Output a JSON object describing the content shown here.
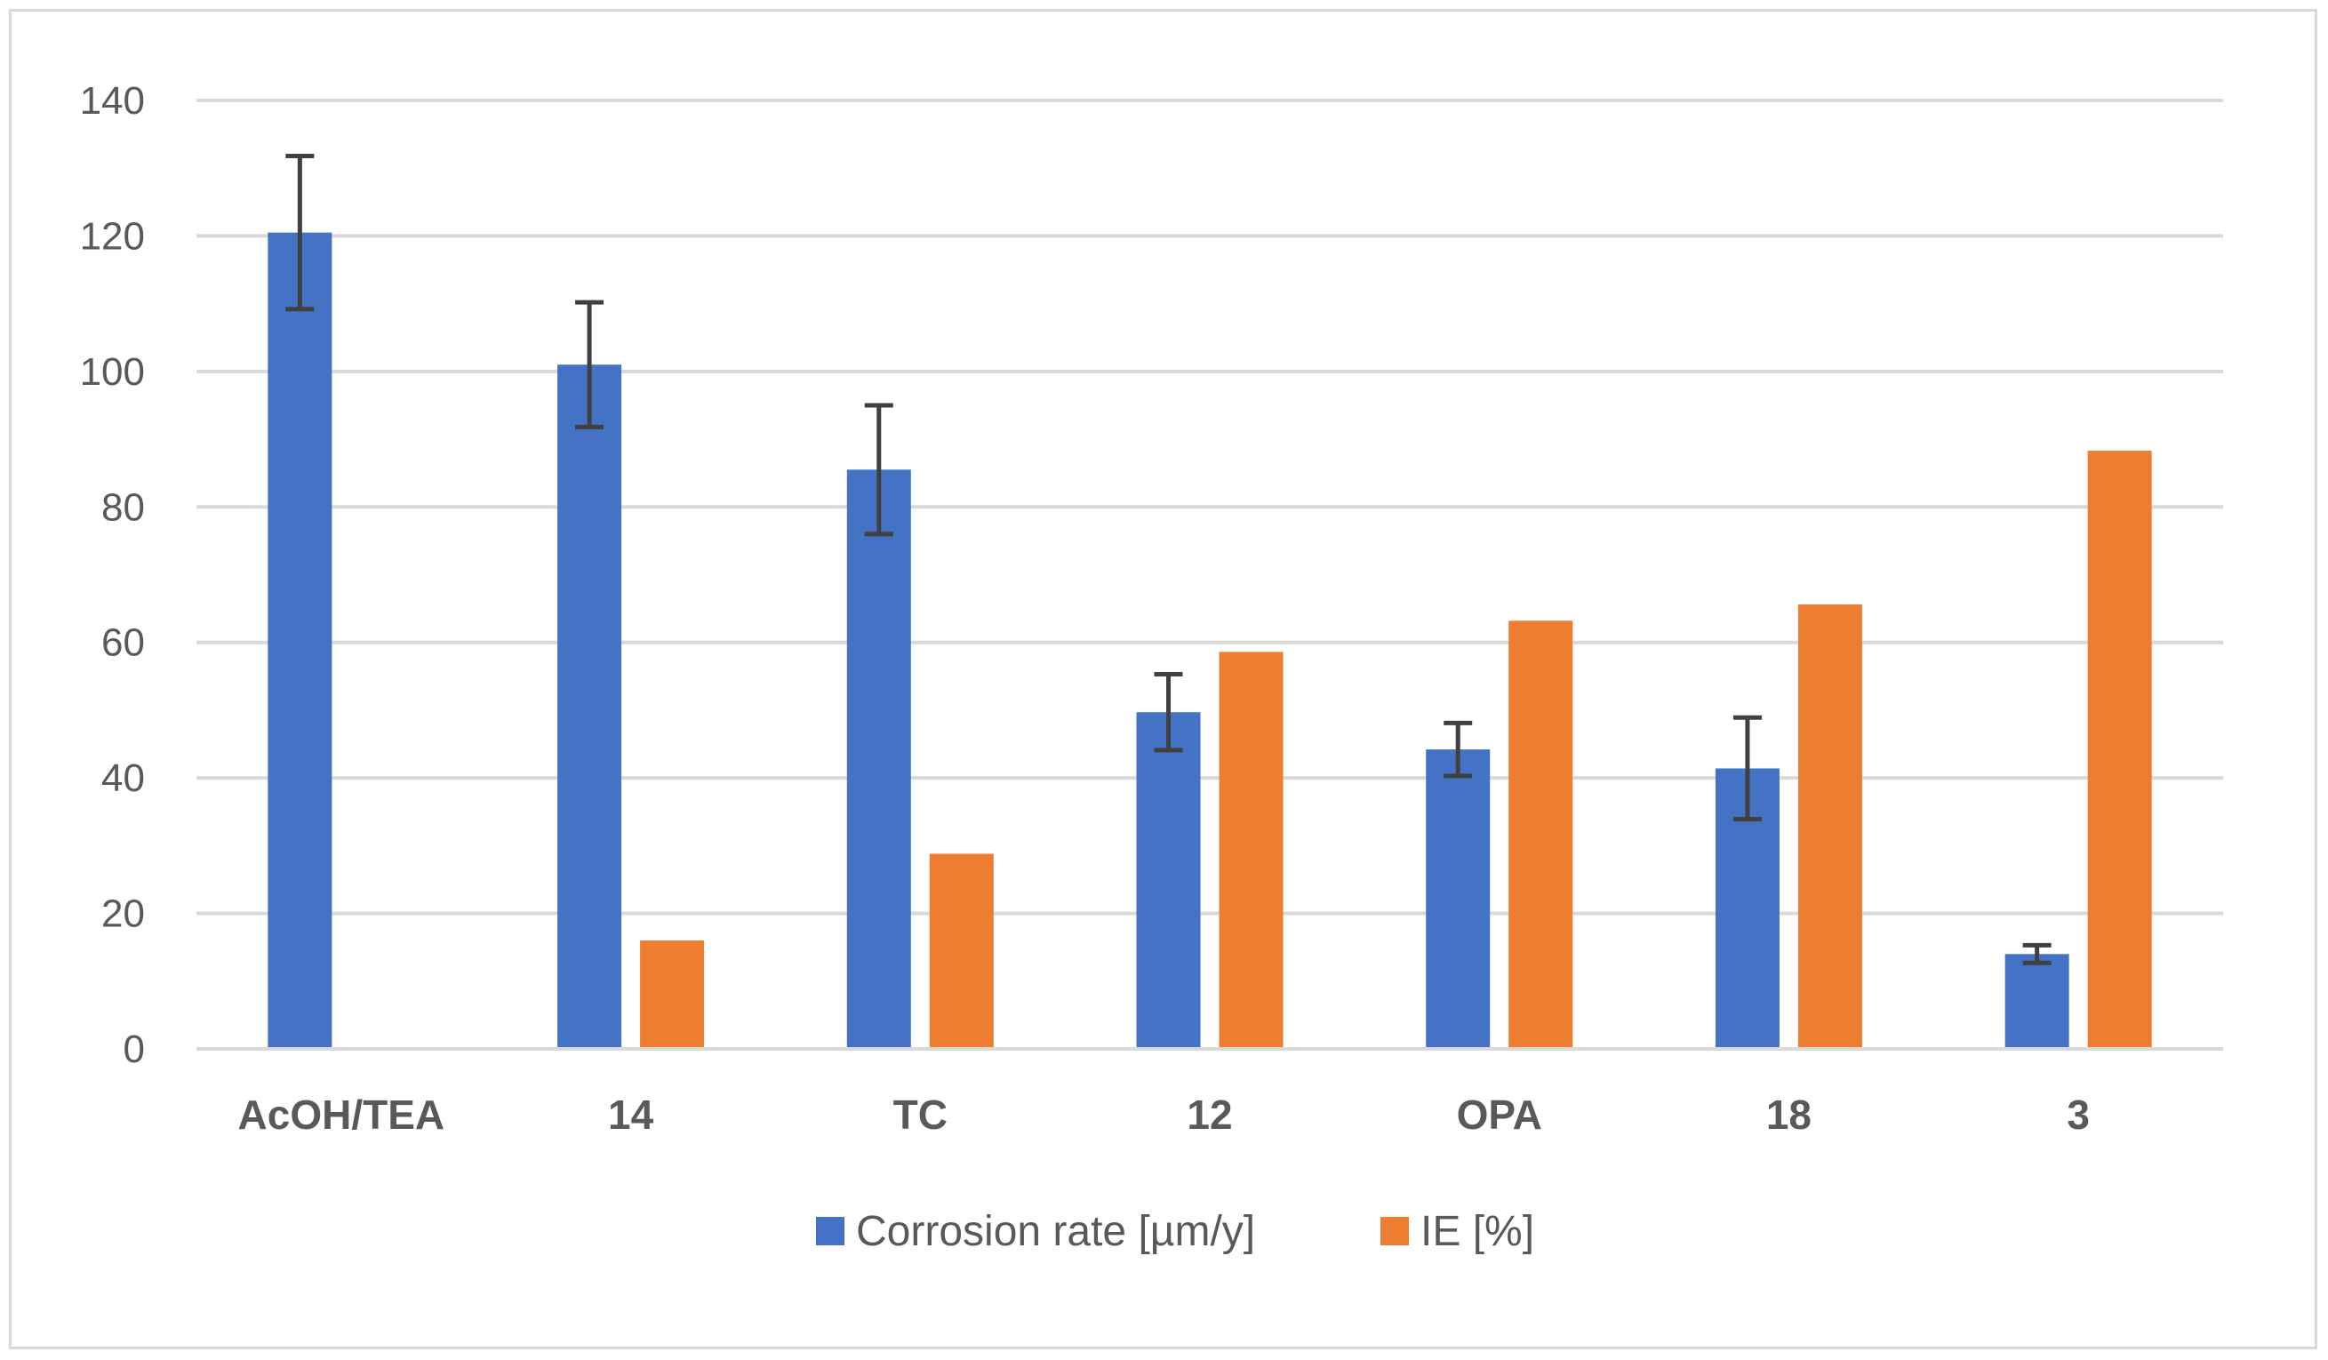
{
  "chart_data": {
    "type": "bar",
    "categories": [
      "AcOH/TEA",
      "14",
      "TC",
      "12",
      "OPA",
      "18",
      "3"
    ],
    "series": [
      {
        "name": "Corrosion rate [µm/y]",
        "color": "#4472c4",
        "values": [
          120.5,
          101,
          85.5,
          49.7,
          44.2,
          41.4,
          14
        ],
        "error": [
          11.3,
          9.2,
          9.5,
          5.6,
          3.9,
          7.5,
          1.3
        ]
      },
      {
        "name": "IE [%]",
        "color": "#ed7d31",
        "values": [
          null,
          16,
          28.8,
          58.6,
          63.2,
          65.6,
          88.3
        ]
      }
    ],
    "ylim": [
      0,
      140
    ],
    "yticks": [
      "0",
      "20",
      "40",
      "60",
      "80",
      "100",
      "120",
      "140"
    ],
    "grid": true,
    "legend_position": "bottom",
    "gridline_color": "#d9d9d9",
    "error_bar_color": "#404040"
  }
}
